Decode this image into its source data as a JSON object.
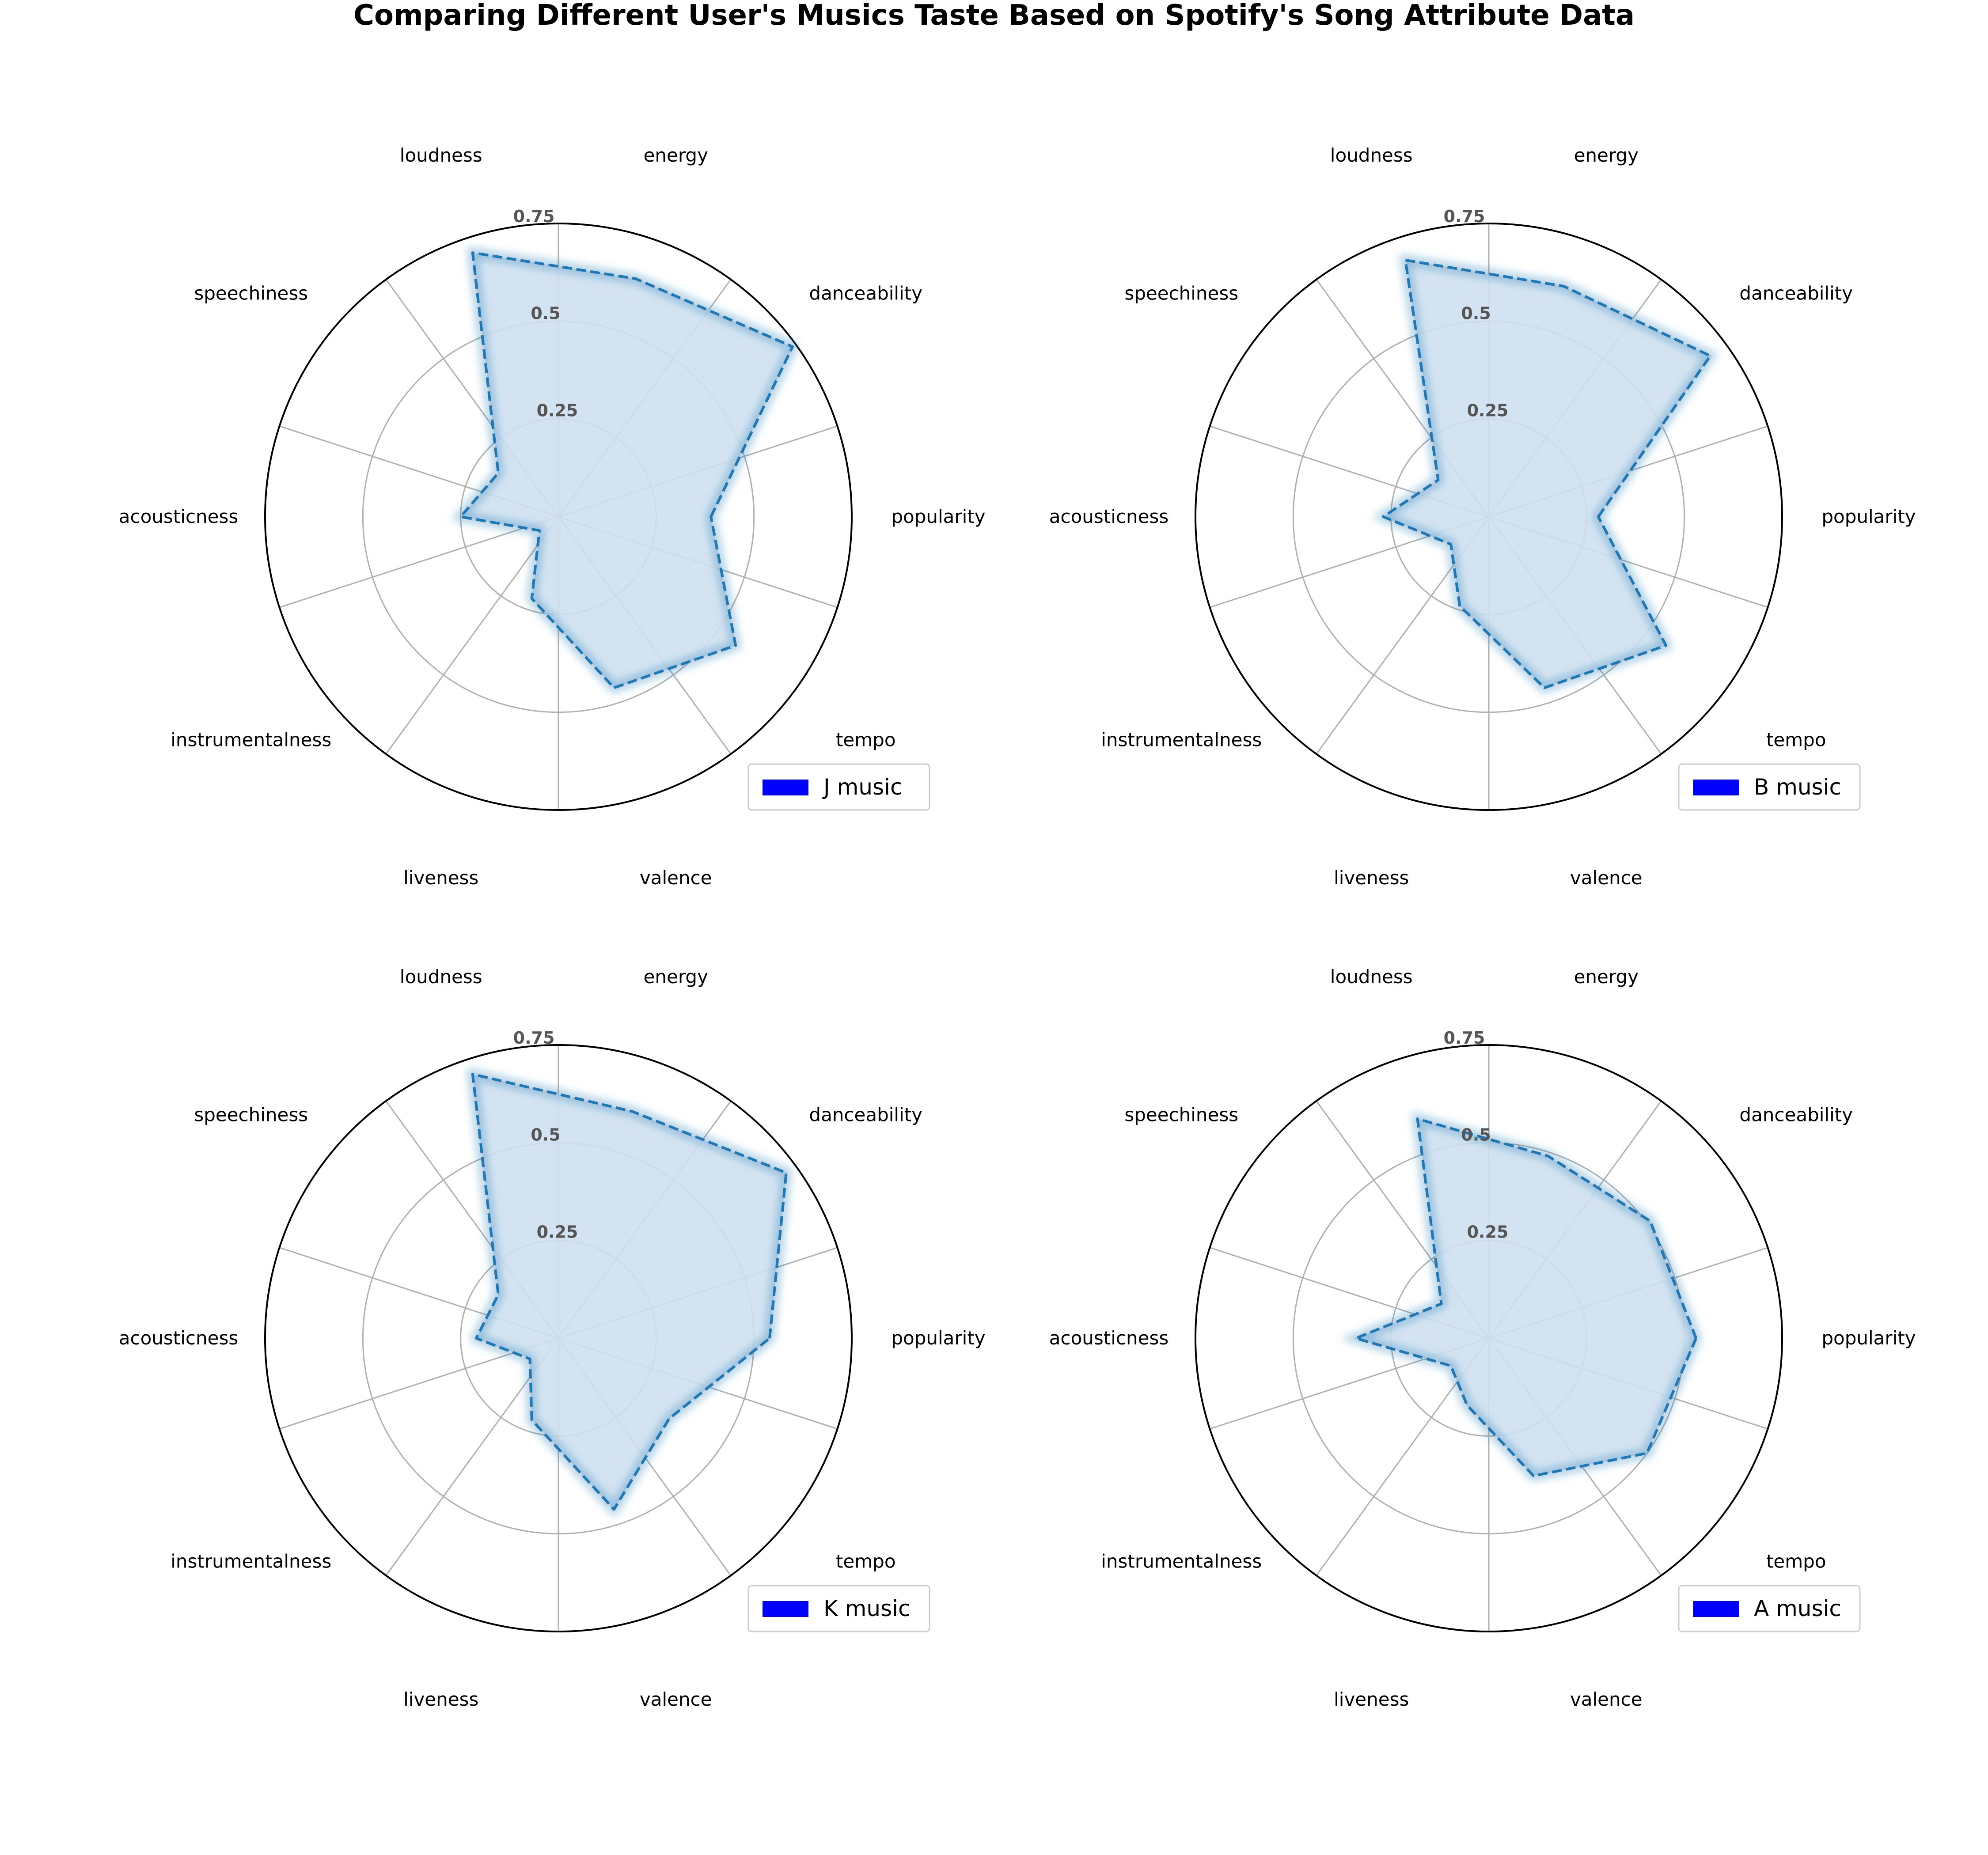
{
  "title": "Comparing Different User's Musics Taste Based on Spotify's Song Attribute Data",
  "colors": {
    "line": "#1f77b4",
    "fill": "#cfe0f0",
    "legend_patch": "#0000ff",
    "grid": "#b0b0b0",
    "spine": "#000000",
    "tick_label": "#555555"
  },
  "chart_data": [
    {
      "type": "radar",
      "legend": "J music",
      "legend_position": "lower-right",
      "axes": [
        "popularity",
        "danceability",
        "energy",
        "loudness",
        "speechiness",
        "acousticness",
        "instrumentalness",
        "liveness",
        "valence",
        "tempo"
      ],
      "values": [
        0.39,
        0.74,
        0.64,
        0.71,
        0.19,
        0.25,
        0.06,
        0.22,
        0.46,
        0.56
      ],
      "r_ticks": [
        0.25,
        0.5,
        0.75
      ],
      "r_tick_labels": [
        "0.25",
        "0.5",
        "0.75"
      ],
      "rlim": [
        0,
        0.75
      ],
      "grid": true
    },
    {
      "type": "radar",
      "legend": "B music",
      "legend_position": "lower-right",
      "axes": [
        "popularity",
        "danceability",
        "energy",
        "loudness",
        "speechiness",
        "acousticness",
        "instrumentalness",
        "liveness",
        "valence",
        "tempo"
      ],
      "values": [
        0.28,
        0.7,
        0.62,
        0.69,
        0.16,
        0.27,
        0.12,
        0.24,
        0.46,
        0.56
      ],
      "r_ticks": [
        0.25,
        0.5,
        0.75
      ],
      "r_tick_labels": [
        "0.25",
        "0.5",
        "0.75"
      ],
      "rlim": [
        0,
        0.75
      ],
      "grid": true
    },
    {
      "type": "radar",
      "legend": "K music",
      "legend_position": "lower-right",
      "axes": [
        "popularity",
        "danceability",
        "energy",
        "loudness",
        "speechiness",
        "acousticness",
        "instrumentalness",
        "liveness",
        "valence",
        "tempo"
      ],
      "values": [
        0.54,
        0.72,
        0.61,
        0.71,
        0.19,
        0.21,
        0.09,
        0.22,
        0.46,
        0.35
      ],
      "r_ticks": [
        0.25,
        0.5,
        0.75
      ],
      "r_tick_labels": [
        "0.25",
        "0.5",
        "0.75"
      ],
      "rlim": [
        0,
        0.75
      ],
      "grid": true
    },
    {
      "type": "radar",
      "legend": "A music",
      "legend_position": "lower-right",
      "axes": [
        "popularity",
        "danceability",
        "energy",
        "loudness",
        "speechiness",
        "acousticness",
        "instrumentalness",
        "liveness",
        "valence",
        "tempo"
      ],
      "values": [
        0.53,
        0.51,
        0.49,
        0.59,
        0.15,
        0.34,
        0.12,
        0.18,
        0.37,
        0.5
      ],
      "r_ticks": [
        0.25,
        0.5,
        0.75
      ],
      "r_tick_labels": [
        "0.25",
        "0.5",
        "0.75"
      ],
      "rlim": [
        0,
        0.75
      ],
      "grid": true
    }
  ]
}
